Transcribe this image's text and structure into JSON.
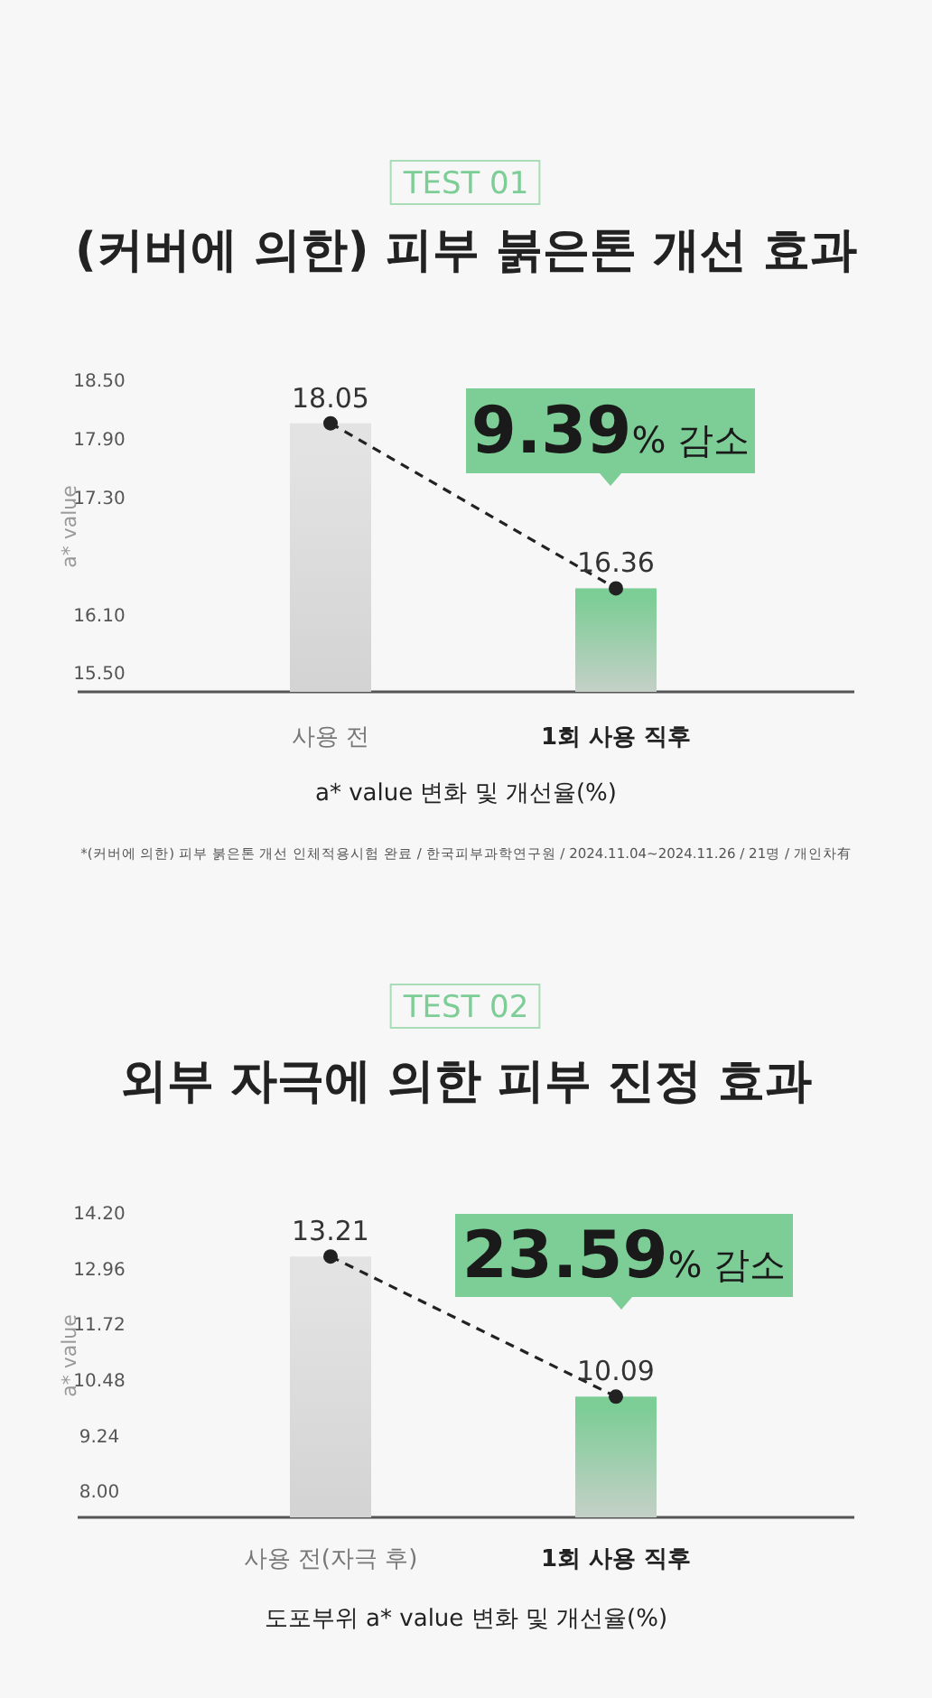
{
  "chart_data": [
    {
      "type": "bar",
      "subtitle": "TEST 01",
      "title": "(커버에 의한) 피부 붉은톤 개선 효과",
      "xlabel": "a* value 변화 및 개선율(%)",
      "ylabel": "a* value",
      "categories": [
        "사용 전",
        "1회 사용 직후"
      ],
      "series": [
        {
          "colors": [
            "#e3e3e3",
            "#7dcd96"
          ],
          "values": [
            18.05,
            16.36
          ]
        },
        {
          "type": "line",
          "color": "#222222",
          "line_style": "dashed",
          "marker": "circle",
          "values": [
            18.05,
            16.36
          ],
          "value_labels": [
            "18.05",
            "16.36"
          ]
        }
      ],
      "ylim": [
        15.3,
        18.5
      ],
      "yticks": [
        {
          "value": 15.5,
          "label": "15.50"
        },
        {
          "value": 16.1,
          "label": "16.10"
        },
        {
          "value": 17.3,
          "label": "17.30"
        },
        {
          "value": 17.9,
          "label": "17.90"
        },
        {
          "value": 18.5,
          "label": "18.50"
        }
      ],
      "grid": false,
      "annotations": [
        "9.39% 감소",
        "*(커버에 의한) 피부 붉은톤 개선 인체적용시험 완료 / 한국피부과학연구원 / 2024.11.04~2024.11.26 / 21명 / 개인차有"
      ]
    },
    {
      "type": "bar",
      "subtitle": "TEST 02",
      "title": "외부 자극에 의한 피부 진정 효과",
      "xlabel": "도포부위 a* value 변화 및 개선율(%)",
      "ylabel": "a* value",
      "categories": [
        "사용 전(자극 후)",
        "1회 사용 직후"
      ],
      "series": [
        {
          "colors": [
            "#e3e3e3",
            "#7dcd96"
          ],
          "values": [
            13.21,
            10.09
          ]
        },
        {
          "type": "line",
          "color": "#222222",
          "line_style": "dashed",
          "marker": "circle",
          "values": [
            13.21,
            10.09
          ],
          "value_labels": [
            "13.21",
            "10.09"
          ]
        }
      ],
      "ylim": [
        7.4,
        14.2
      ],
      "yticks": [
        {
          "value": 8.0,
          "label": "8.00"
        },
        9.24,
        10.48,
        11.72,
        12.96,
        {
          "value": 14.2,
          "label": "14.20"
        }
      ],
      "grid": false,
      "annotations": [
        "23.59% 감소"
      ]
    }
  ]
}
